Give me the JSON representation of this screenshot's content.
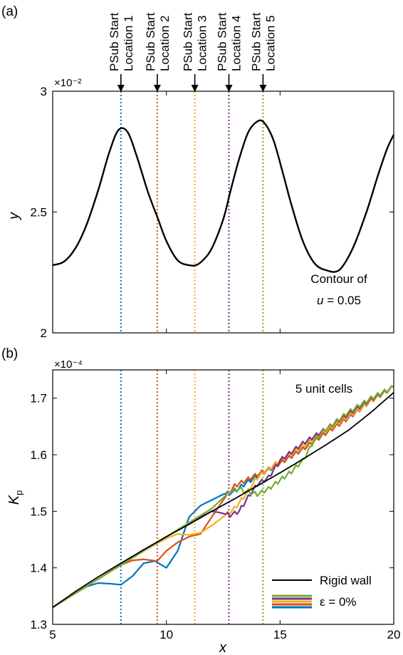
{
  "chart_data": [
    {
      "panel_label": "(a)",
      "type": "line",
      "ylabel": "y",
      "y_exponent": "×10⁻²",
      "xlim": [
        5,
        20
      ],
      "ylim": [
        2,
        3
      ],
      "yticks": [
        2,
        2.5,
        3
      ],
      "yticklabels": [
        "2",
        "2.5",
        "3"
      ],
      "annotation_lines": [
        "Contour of",
        "u = 0.05"
      ],
      "series": [
        {
          "color": "#000000",
          "x": [
            5.0,
            5.5,
            6.0,
            6.5,
            7.0,
            7.5,
            7.9,
            8.3,
            8.7,
            9.2,
            9.6,
            10.0,
            10.5,
            11.0,
            11.3,
            11.6,
            12.0,
            12.5,
            12.8,
            13.2,
            13.6,
            14.0,
            14.3,
            14.7,
            15.1,
            15.5,
            16.0,
            16.5,
            17.0,
            17.6,
            18.2,
            18.8,
            19.3,
            19.7,
            20.0
          ],
          "y": [
            2.28,
            2.295,
            2.35,
            2.45,
            2.59,
            2.75,
            2.84,
            2.83,
            2.73,
            2.58,
            2.48,
            2.38,
            2.3,
            2.28,
            2.28,
            2.3,
            2.35,
            2.47,
            2.58,
            2.72,
            2.83,
            2.875,
            2.87,
            2.8,
            2.67,
            2.53,
            2.38,
            2.29,
            2.26,
            2.26,
            2.35,
            2.5,
            2.65,
            2.76,
            2.82
          ]
        }
      ]
    },
    {
      "panel_label": "(b)",
      "type": "line",
      "ylabel": "K",
      "ylabel_sub": "p",
      "xlabel": "x",
      "y_exponent": "×10⁻⁴",
      "xlim": [
        5,
        20
      ],
      "ylim": [
        1.3,
        1.75
      ],
      "xticks": [
        5,
        10,
        15,
        20
      ],
      "xticklabels": [
        "5",
        "10",
        "15",
        "20"
      ],
      "yticks": [
        1.3,
        1.4,
        1.5,
        1.6,
        1.7
      ],
      "yticklabels": [
        "1.3",
        "1.4",
        "1.5",
        "1.6",
        "1.7"
      ],
      "annotation": "5 unit cells",
      "legend": {
        "position": "bottom-right",
        "entries": [
          {
            "label": "Rigid wall",
            "colors": [
              "#000000"
            ]
          },
          {
            "label": "ε = 0%",
            "colors": [
              "#77ac30",
              "#7e2f8e",
              "#edb120",
              "#d95319",
              "#0072bd"
            ]
          }
        ]
      },
      "series": [
        {
          "color": "#0072bd",
          "x": [
            5,
            6,
            6.5,
            7,
            7.5,
            8,
            8.5,
            9,
            9.5,
            10,
            10.5,
            11,
            11.5,
            12,
            12.5,
            13,
            13.5,
            14,
            15,
            16,
            17,
            18,
            19,
            20
          ],
          "y": [
            1.33,
            1.355,
            1.367,
            1.373,
            1.372,
            1.37,
            1.385,
            1.408,
            1.412,
            1.4,
            1.43,
            1.49,
            1.51,
            1.52,
            1.53,
            1.535,
            1.55,
            1.562,
            1.585,
            1.61,
            1.638,
            1.665,
            1.695,
            1.72
          ]
        },
        {
          "color": "#d95319",
          "x": [
            5,
            6,
            7,
            8,
            8.5,
            9,
            9.6,
            10,
            10.5,
            11,
            11.5,
            12,
            12.5,
            13,
            13.5,
            14,
            15,
            16,
            17,
            18,
            19,
            20
          ],
          "y": [
            1.33,
            1.355,
            1.38,
            1.405,
            1.413,
            1.415,
            1.412,
            1.43,
            1.445,
            1.455,
            1.46,
            1.49,
            1.52,
            1.545,
            1.555,
            1.565,
            1.585,
            1.61,
            1.638,
            1.665,
            1.695,
            1.72
          ]
        },
        {
          "color": "#edb120",
          "x": [
            5,
            6,
            7,
            8,
            9,
            10,
            10.5,
            11,
            11.5,
            12,
            12.5,
            13,
            13.5,
            14,
            15,
            16,
            17,
            18,
            19,
            20
          ],
          "y": [
            1.33,
            1.355,
            1.38,
            1.405,
            1.43,
            1.452,
            1.46,
            1.458,
            1.462,
            1.475,
            1.49,
            1.505,
            1.53,
            1.56,
            1.59,
            1.615,
            1.642,
            1.668,
            1.695,
            1.72
          ]
        },
        {
          "color": "#7e2f8e",
          "x": [
            5,
            6,
            7,
            8,
            9,
            10,
            11,
            11.5,
            12,
            12.3,
            12.8,
            13.2,
            13.6,
            14,
            14.5,
            15,
            16,
            17,
            18,
            19,
            20
          ],
          "y": [
            1.33,
            1.355,
            1.38,
            1.405,
            1.43,
            1.455,
            1.478,
            1.49,
            1.5,
            1.498,
            1.493,
            1.5,
            1.525,
            1.548,
            1.56,
            1.59,
            1.62,
            1.645,
            1.672,
            1.698,
            1.72
          ]
        },
        {
          "color": "#77ac30",
          "x": [
            5,
            6,
            7,
            8,
            9,
            10,
            11,
            12,
            12.8,
            13.2,
            13.5,
            14,
            14.5,
            15,
            15.5,
            16,
            16.5,
            17,
            17.5,
            18,
            19,
            20
          ],
          "y": [
            1.33,
            1.355,
            1.38,
            1.405,
            1.43,
            1.455,
            1.48,
            1.505,
            1.535,
            1.54,
            1.535,
            1.53,
            1.54,
            1.555,
            1.57,
            1.59,
            1.625,
            1.645,
            1.66,
            1.675,
            1.7,
            1.72
          ]
        },
        {
          "color": "#000000",
          "x": [
            5,
            6,
            7,
            8,
            9,
            10,
            11,
            12,
            13,
            14,
            15,
            16,
            17,
            18,
            19,
            20
          ],
          "y": [
            1.33,
            1.358,
            1.384,
            1.408,
            1.432,
            1.455,
            1.477,
            1.5,
            1.522,
            1.545,
            1.568,
            1.592,
            1.617,
            1.643,
            1.675,
            1.71
          ]
        }
      ]
    }
  ],
  "substructure_starts": [
    {
      "x": 8.0,
      "color": "#0072bd",
      "label_line1": "PSub Start",
      "label_line2": "Location 1"
    },
    {
      "x": 9.6,
      "color": "#d95319",
      "label_line1": "PSub Start",
      "label_line2": "Location 2"
    },
    {
      "x": 11.25,
      "color": "#edb120",
      "label_line1": "PSub Start",
      "label_line2": "Location 3"
    },
    {
      "x": 12.75,
      "color": "#7e2f8e",
      "label_line1": "PSub Start",
      "label_line2": "Location 4"
    },
    {
      "x": 14.25,
      "color": "#77ac30",
      "label_line1": "PSub Start",
      "label_line2": "Location 5"
    }
  ]
}
